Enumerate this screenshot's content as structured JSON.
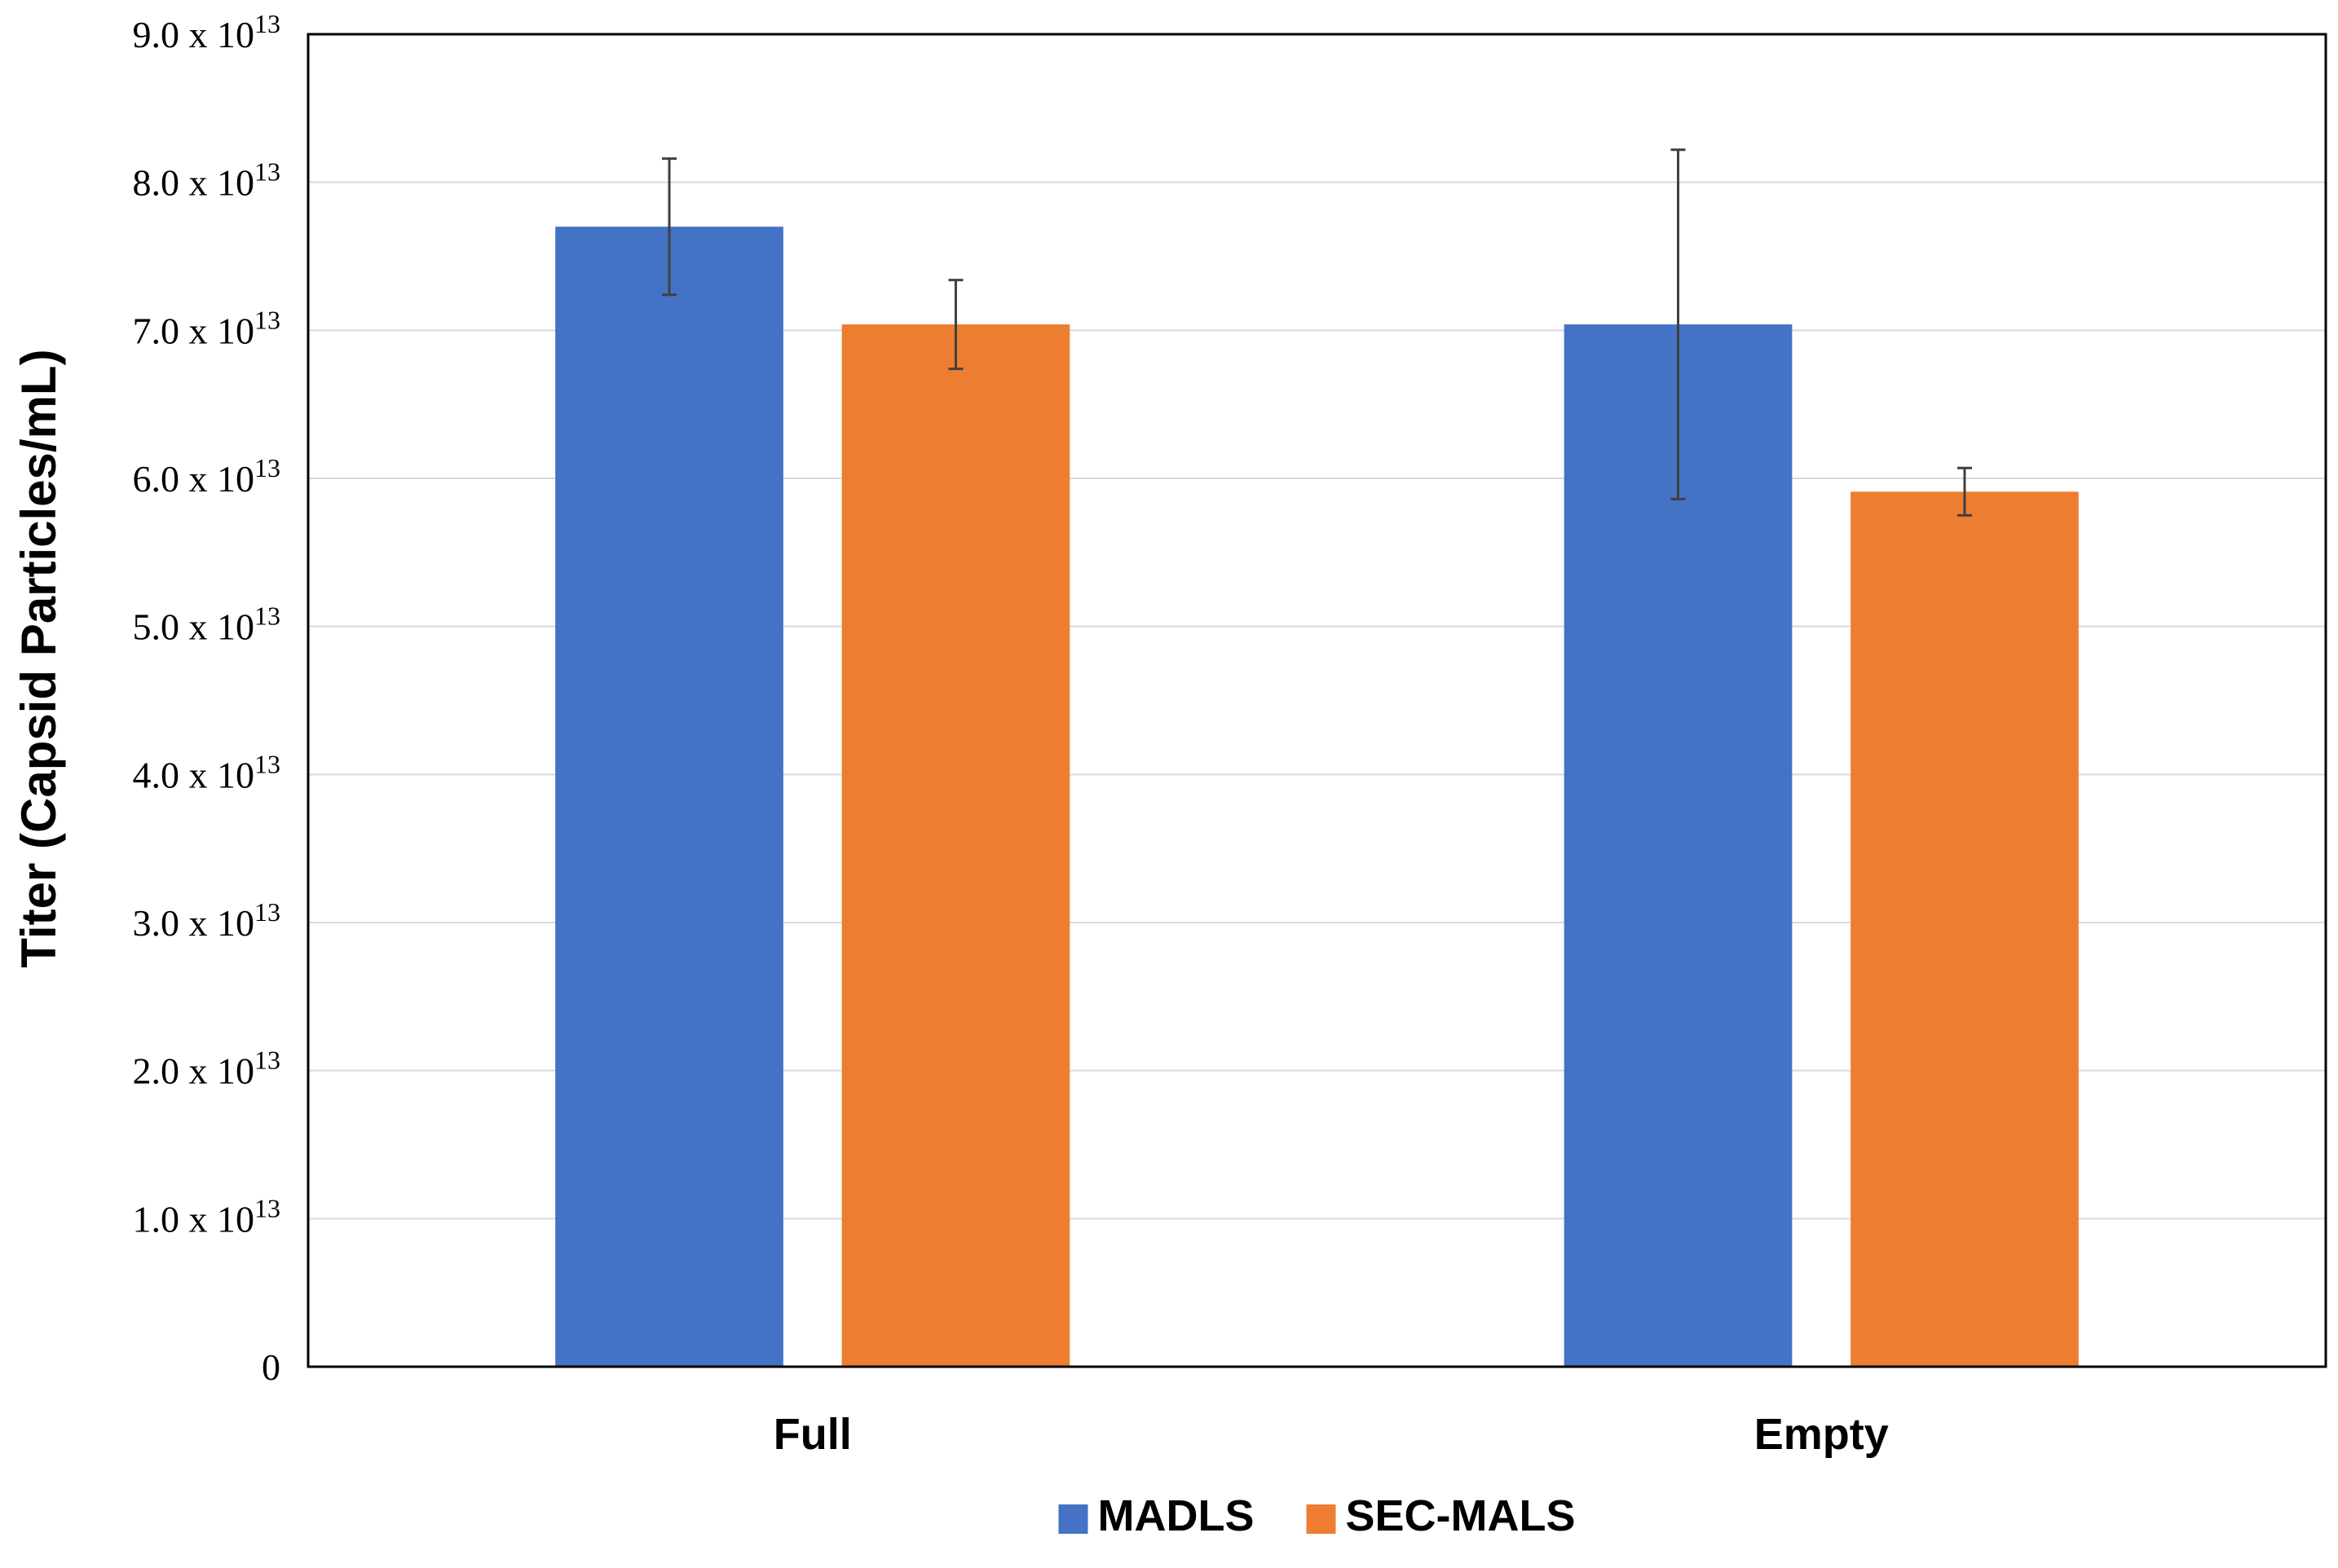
{
  "chart_data": {
    "type": "bar",
    "title": "",
    "xlabel": "",
    "ylabel": "Titer (Capsid Particles/mL)",
    "categories": [
      "Full",
      "Empty"
    ],
    "series": [
      {
        "name": "MADLS",
        "color": "#4472C4",
        "values": [
          77000000000000.0,
          70400000000000.0
        ],
        "errors": [
          4600000000000.0,
          11800000000000.0
        ]
      },
      {
        "name": "SEC-MALS",
        "color": "#ED7D31",
        "values": [
          70400000000000.0,
          59100000000000.0
        ],
        "errors": [
          3000000000000.0,
          1600000000000.0
        ]
      }
    ],
    "ylim": [
      0,
      90000000000000.0
    ],
    "y_ticks": [
      {
        "value": 0,
        "mantissa": "0",
        "exponent": ""
      },
      {
        "value": 10000000000000.0,
        "mantissa": "1.0 x 10",
        "exponent": "13"
      },
      {
        "value": 20000000000000.0,
        "mantissa": "2.0 x 10",
        "exponent": "13"
      },
      {
        "value": 30000000000000.0,
        "mantissa": "3.0 x 10",
        "exponent": "13"
      },
      {
        "value": 40000000000000.0,
        "mantissa": "4.0 x 10",
        "exponent": "13"
      },
      {
        "value": 50000000000000.0,
        "mantissa": "5.0 x 10",
        "exponent": "13"
      },
      {
        "value": 60000000000000.0,
        "mantissa": "6.0 x 10",
        "exponent": "13"
      },
      {
        "value": 70000000000000.0,
        "mantissa": "7.0 x 10",
        "exponent": "13"
      },
      {
        "value": 80000000000000.0,
        "mantissa": "8.0 x 10",
        "exponent": "13"
      },
      {
        "value": 90000000000000.0,
        "mantissa": "9.0 x 10",
        "exponent": "13"
      }
    ],
    "grid": true,
    "legend_position": "bottom-center",
    "error_bar_color": "#404040",
    "grid_color": "#D9D9D9",
    "axis_color": "#000000"
  }
}
